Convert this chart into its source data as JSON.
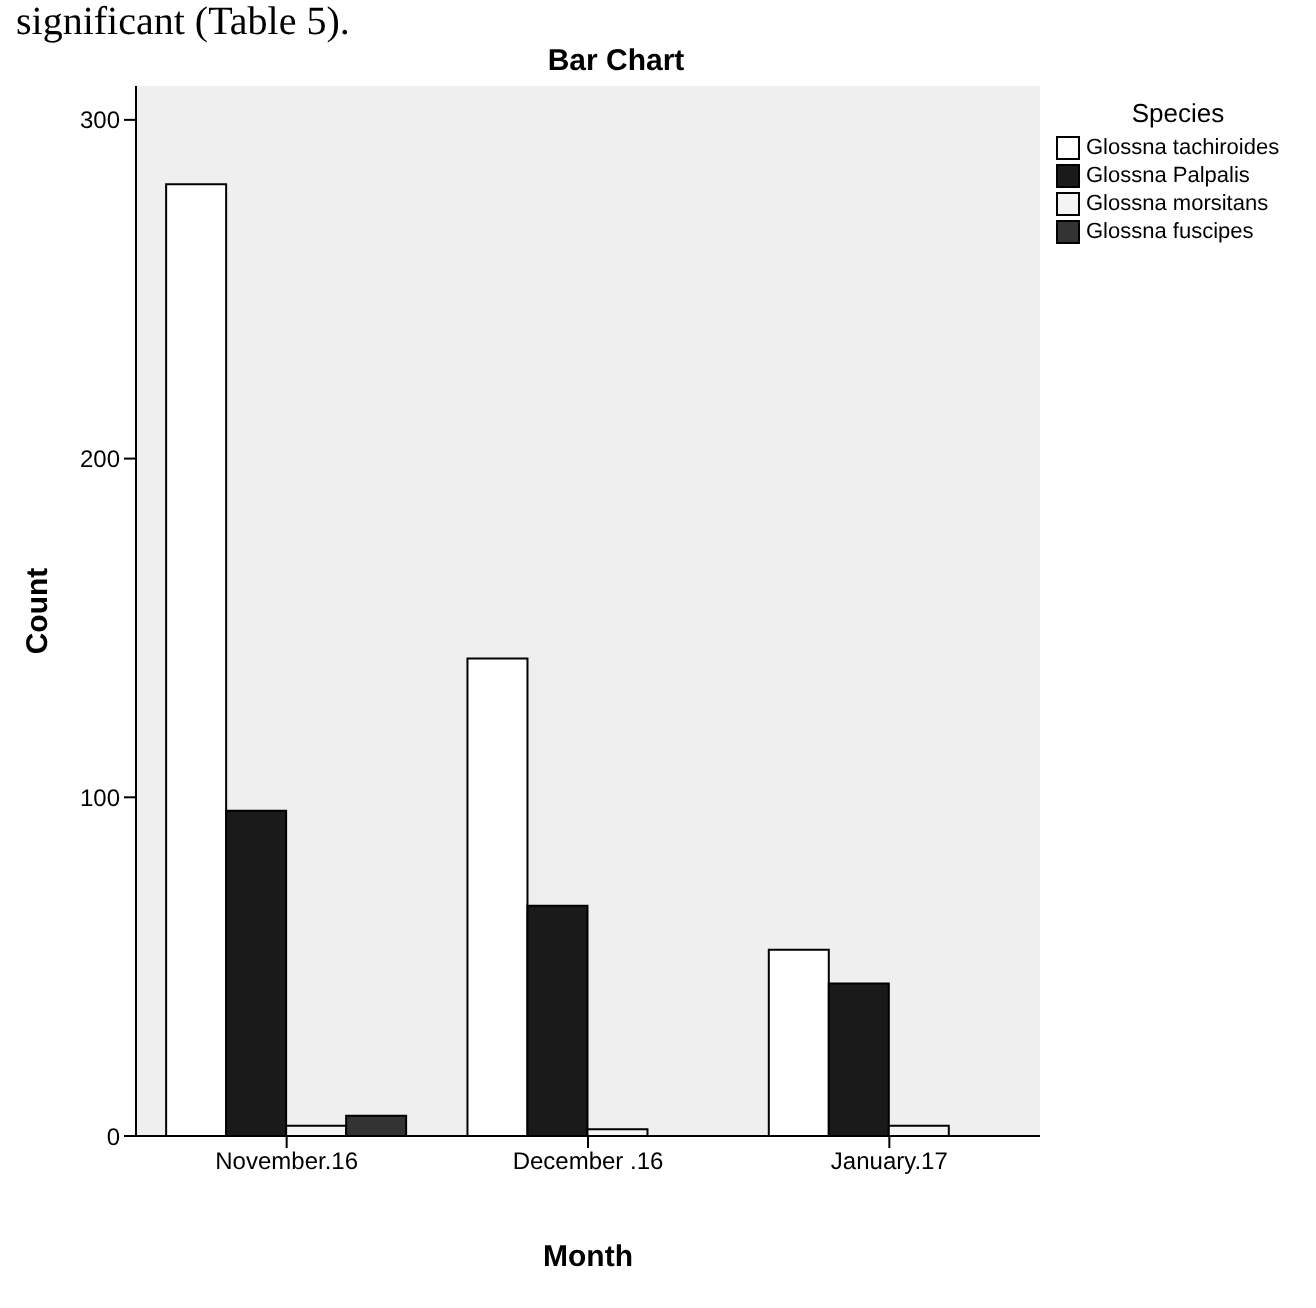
{
  "chart_data": {
    "type": "bar",
    "title": "Bar Chart",
    "xlabel": "Month",
    "ylabel": "Count",
    "legend_title": "Species",
    "annotations": [
      "significant (Table 5)."
    ],
    "categories": [
      "November.16",
      "December .16",
      "January.17"
    ],
    "series": [
      {
        "name": "Glossna tachiroides",
        "color": "#ffffff",
        "values": [
          281,
          141,
          55
        ]
      },
      {
        "name": "Glossna Palpalis",
        "color": "#1a1a1a",
        "values": [
          96,
          68,
          45
        ]
      },
      {
        "name": "Glossna morsitans",
        "color": "#f4f4f4",
        "values": [
          3,
          2,
          3
        ]
      },
      {
        "name": "Glossna fuscipes",
        "color": "#333333",
        "values": [
          6,
          0,
          0
        ]
      }
    ],
    "ylim": [
      0,
      310
    ],
    "yticks": [
      0,
      100,
      200,
      300
    ],
    "legend": "top right"
  }
}
